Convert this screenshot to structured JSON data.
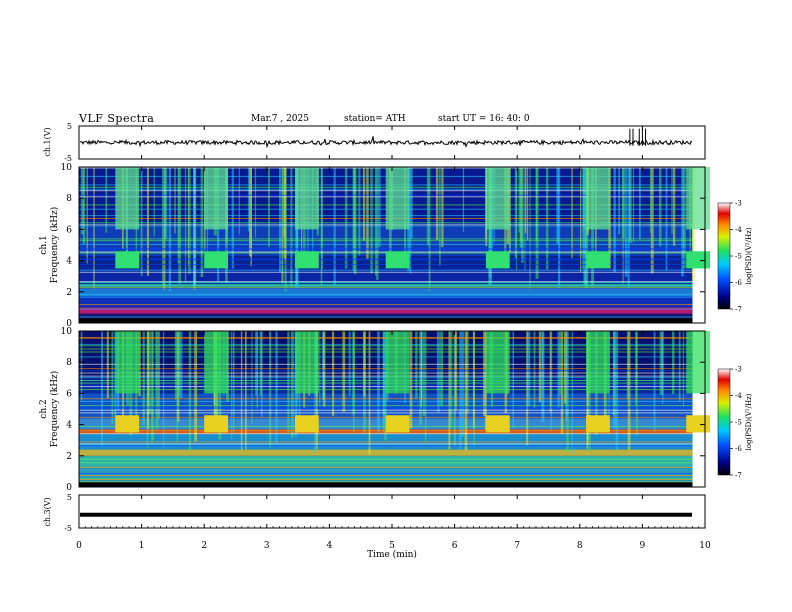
{
  "header": {
    "title": "VLF  Spectra",
    "date": "Mar.7  , 2025",
    "station": "station= ATH",
    "start_ut": "start  UT  =    16: 40: 0"
  },
  "chart_data": [
    {
      "type": "line",
      "panel": "ch1-waveform",
      "ylabel": "ch.1(V)",
      "ylim": [
        -5,
        5
      ],
      "yticks": [
        "5",
        "-5"
      ],
      "xlim": [
        0,
        10
      ],
      "approx_baseline": 0,
      "note_values": "noisy trace near 0 V with spikes up to ~5 V near 8.8-9.0 min"
    },
    {
      "type": "heatmap",
      "panel": "ch1-spectrogram",
      "ylabel": "ch.1\nFrequency (kHz)",
      "ylim": [
        0,
        10
      ],
      "yticks": [
        "0",
        "2",
        "4",
        "6",
        "8",
        "10"
      ],
      "xlim": [
        0,
        10
      ],
      "colorbar_label": "log(PSD)(V²/Hz)",
      "colorbar_range": [
        -7,
        -3
      ],
      "colorbar_ticks": [
        "-3",
        "-4",
        "-5",
        "-6",
        "-7"
      ],
      "bursts_min": [
        0.58,
        2.0,
        3.45,
        4.9,
        6.5,
        8.1,
        9.7
      ]
    },
    {
      "type": "heatmap",
      "panel": "ch2-spectrogram",
      "ylabel": "ch.2\nFrequency (kHz)",
      "ylim": [
        0,
        10
      ],
      "yticks": [
        "0",
        "2",
        "4",
        "6",
        "8",
        "10"
      ],
      "xlim": [
        0,
        10
      ],
      "colorbar_label": "log(PSD)(V²/Hz)",
      "colorbar_range": [
        -7,
        -3
      ],
      "colorbar_ticks": [
        "-3",
        "-4",
        "-5",
        "-6",
        "-7"
      ],
      "bursts_min": [
        0.58,
        2.0,
        3.45,
        4.9,
        6.5,
        8.1,
        9.7
      ]
    },
    {
      "type": "line",
      "panel": "ch3-waveform",
      "ylabel": "ch.3(V)",
      "ylim": [
        -5,
        5
      ],
      "yticks": [
        "5",
        "-5"
      ],
      "xlim": [
        0,
        10
      ],
      "approx_value": -1,
      "xlabel": "Time  (min)",
      "xticks": [
        "0",
        "1",
        "2",
        "3",
        "4",
        "5",
        "6",
        "7",
        "8",
        "9",
        "10"
      ]
    }
  ]
}
